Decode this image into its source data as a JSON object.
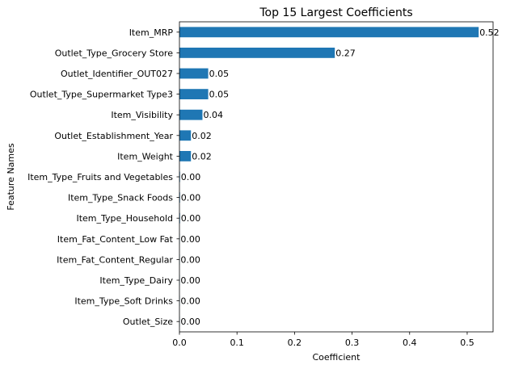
{
  "chart_data": {
    "type": "bar",
    "orientation": "horizontal",
    "title": "Top 15 Largest Coefficients",
    "xlabel": "Coefficient",
    "ylabel": "Feature Names",
    "xlim": [
      0,
      0.545
    ],
    "xticks": [
      0.0,
      0.1,
      0.2,
      0.3,
      0.4,
      0.5
    ],
    "xtick_labels": [
      "0.0",
      "0.1",
      "0.2",
      "0.3",
      "0.4",
      "0.5"
    ],
    "grid": false,
    "bar_color": "#1f77b4",
    "categories": [
      "Item_MRP",
      "Outlet_Type_Grocery Store",
      "Outlet_Identifier_OUT027",
      "Outlet_Type_Supermarket Type3",
      "Item_Visibility",
      "Outlet_Establishment_Year",
      "Item_Weight",
      "Item_Type_Fruits and Vegetables",
      "Item_Type_Snack Foods",
      "Item_Type_Household",
      "Item_Fat_Content_Low Fat",
      "Item_Fat_Content_Regular",
      "Item_Type_Dairy",
      "Item_Type_Soft Drinks",
      "Outlet_Size"
    ],
    "values": [
      0.52,
      0.27,
      0.05,
      0.05,
      0.04,
      0.02,
      0.02,
      0.001,
      0.001,
      0.001,
      0.0005,
      0.0005,
      0.0005,
      0.0005,
      0.0005
    ],
    "data_labels": [
      "0.52",
      "0.27",
      "0.05",
      "0.05",
      "0.04",
      "0.02",
      "0.02",
      "0.00",
      "0.00",
      "0.00",
      "0.00",
      "0.00",
      "0.00",
      "0.00",
      "0.00"
    ]
  }
}
